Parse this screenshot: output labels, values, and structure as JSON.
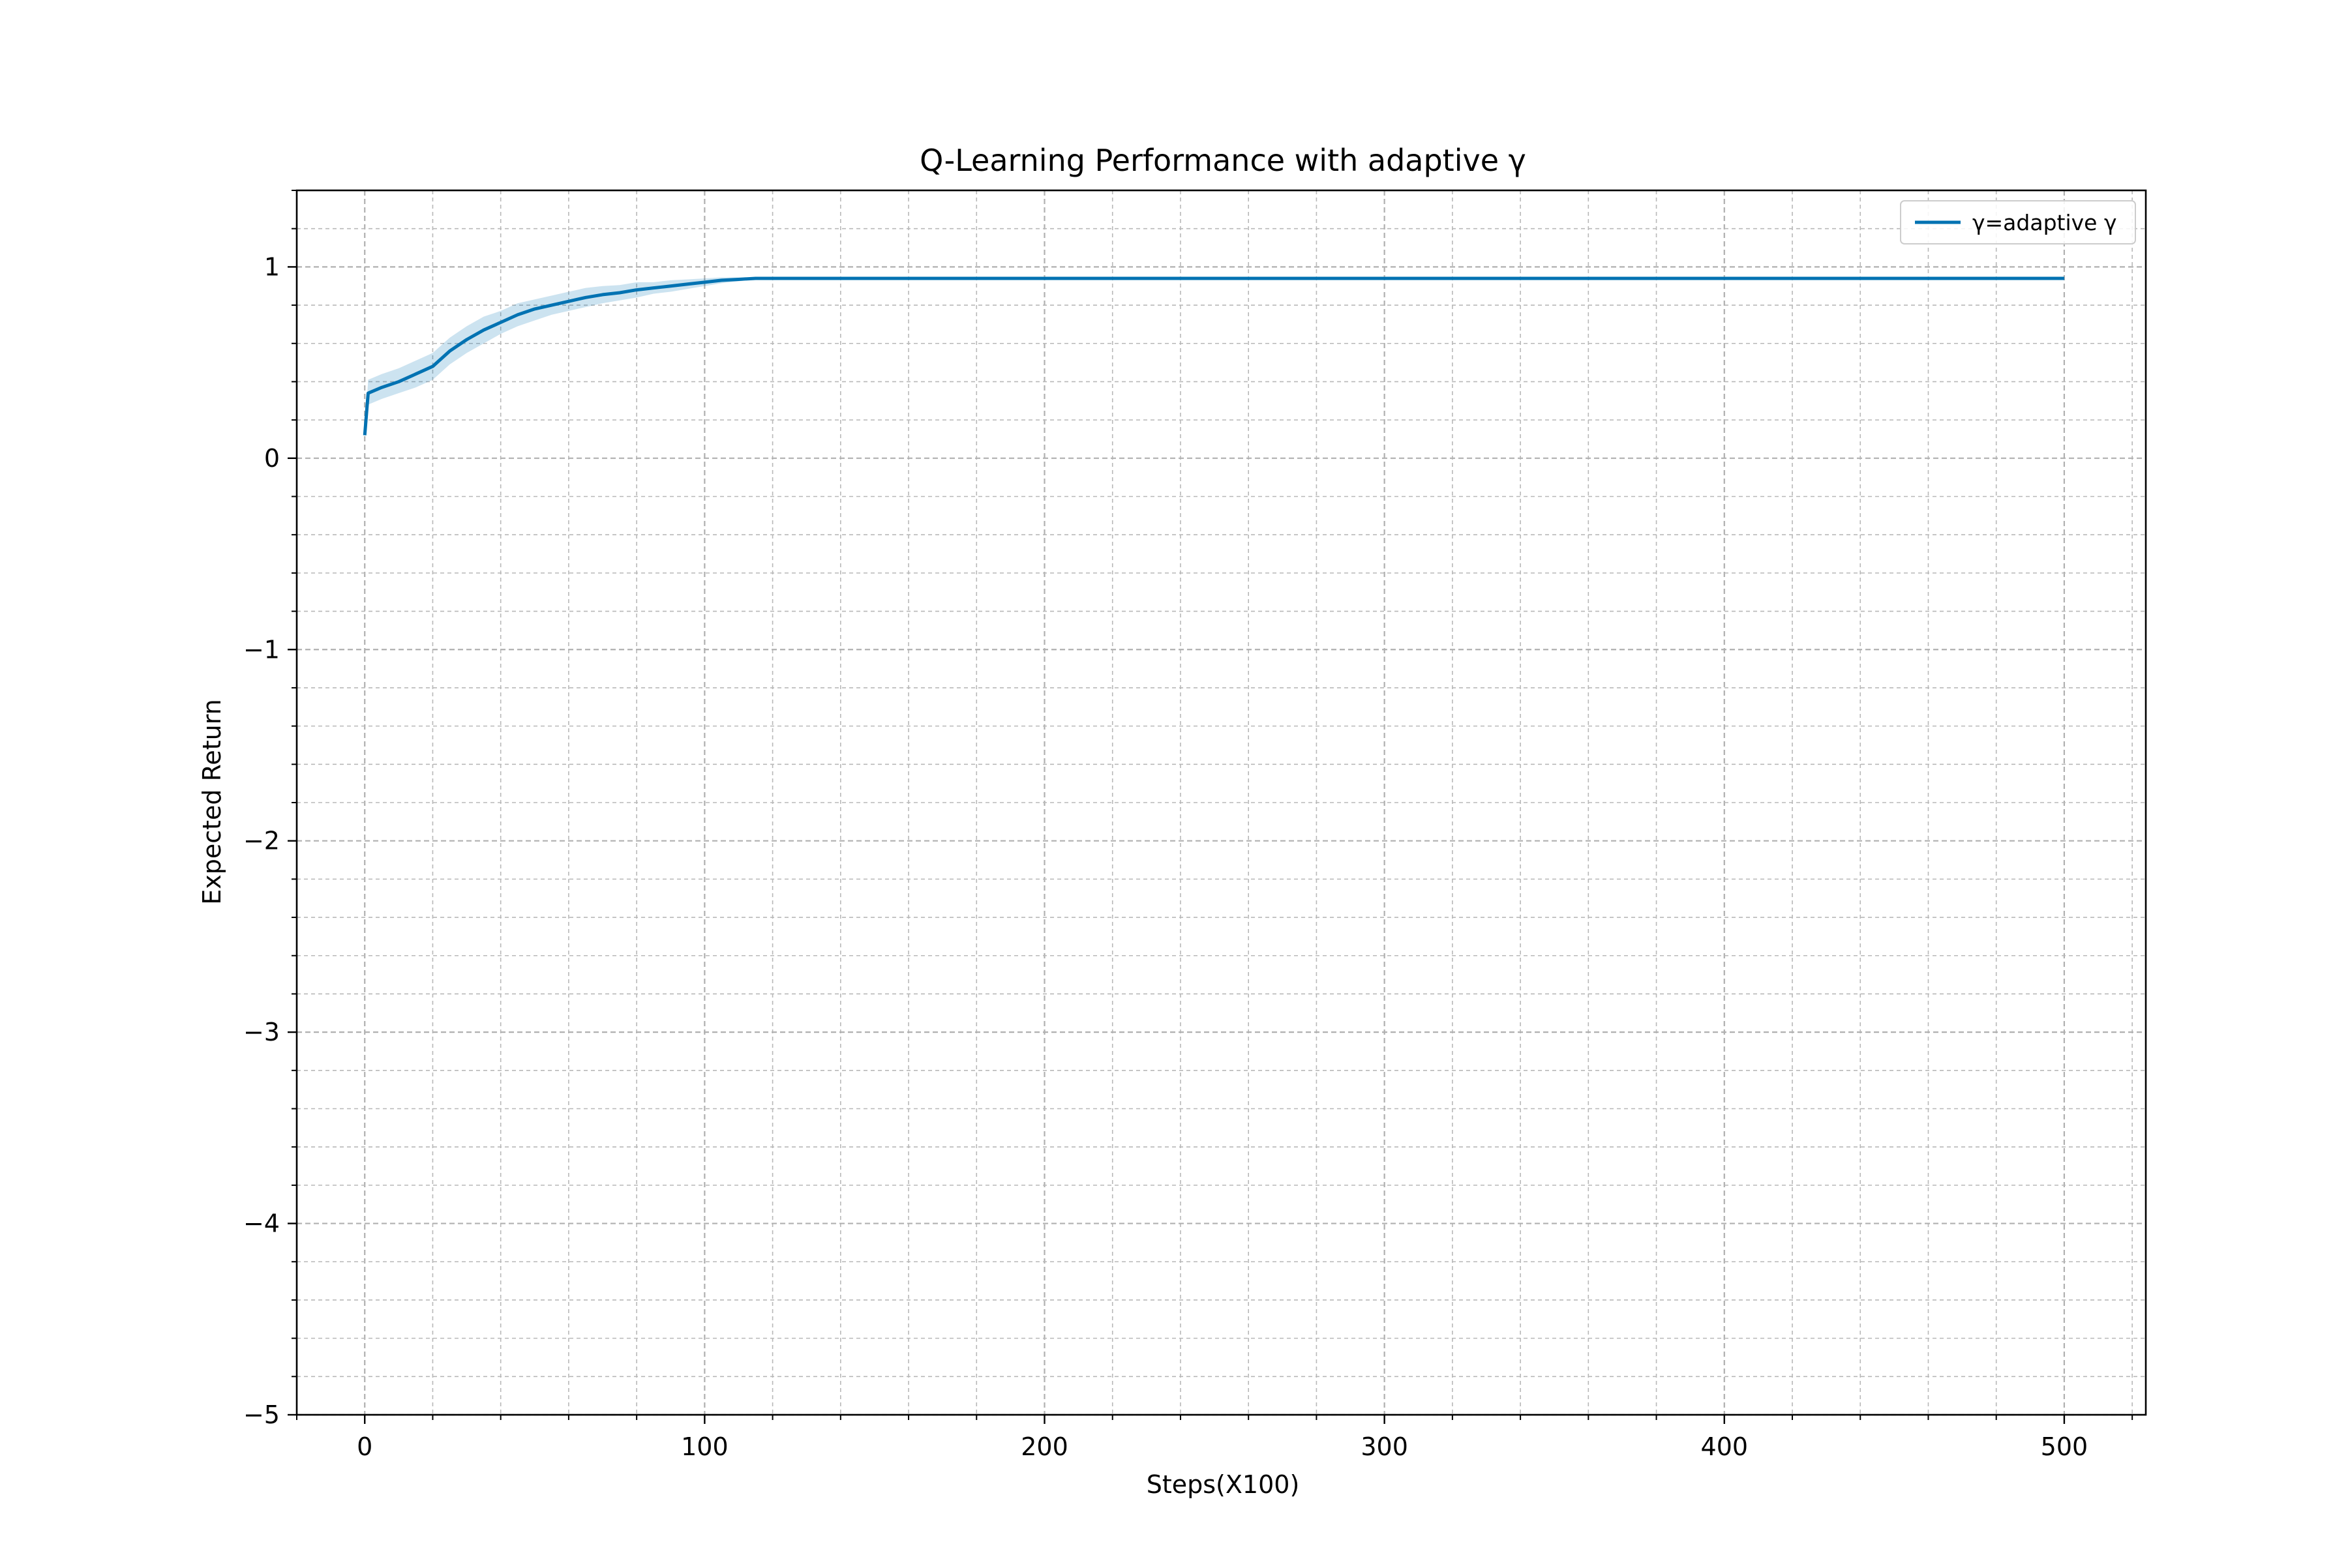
{
  "chart_data": {
    "type": "line",
    "title": "Q-Learning Performance with adaptive γ",
    "xlabel": "Steps(X100)",
    "ylabel": "Expected Return",
    "xlim": [
      -20,
      524
    ],
    "ylim": [
      -5,
      1.4
    ],
    "x_ticks": [
      0,
      100,
      200,
      300,
      400,
      500
    ],
    "x_tick_labels": [
      "0",
      "100",
      "200",
      "300",
      "400",
      "500"
    ],
    "y_ticks": [
      -5,
      -4,
      -3,
      -2,
      -1,
      0,
      1
    ],
    "y_tick_labels": [
      "−5",
      "−4",
      "−3",
      "−2",
      "−1",
      "0",
      "1"
    ],
    "x_minor_step": 20,
    "y_minor_step": 0.2,
    "grid": true,
    "legend": {
      "position": "upper right",
      "entries": [
        "γ=adaptive γ"
      ]
    },
    "series": [
      {
        "name": "γ=adaptive γ",
        "color": "#0072b2",
        "band_color": "#0072b2",
        "x": [
          0,
          1,
          5,
          10,
          15,
          20,
          25,
          30,
          35,
          40,
          45,
          50,
          55,
          60,
          65,
          70,
          75,
          80,
          85,
          90,
          95,
          100,
          105,
          110,
          115,
          120,
          150,
          200,
          250,
          300,
          350,
          400,
          450,
          500
        ],
        "y": [
          0.12,
          0.34,
          0.37,
          0.4,
          0.44,
          0.48,
          0.56,
          0.62,
          0.67,
          0.71,
          0.75,
          0.78,
          0.8,
          0.82,
          0.84,
          0.855,
          0.865,
          0.88,
          0.89,
          0.9,
          0.91,
          0.92,
          0.93,
          0.935,
          0.94,
          0.94,
          0.94,
          0.94,
          0.94,
          0.94,
          0.94,
          0.94,
          0.94,
          0.94
        ],
        "lower": [
          0.12,
          0.28,
          0.31,
          0.34,
          0.37,
          0.41,
          0.49,
          0.55,
          0.6,
          0.65,
          0.69,
          0.72,
          0.75,
          0.77,
          0.79,
          0.81,
          0.825,
          0.84,
          0.86,
          0.87,
          0.885,
          0.9,
          0.915,
          0.925,
          0.935,
          0.94,
          0.94,
          0.94,
          0.94,
          0.94,
          0.94,
          0.94,
          0.94,
          0.94
        ],
        "upper": [
          0.12,
          0.41,
          0.44,
          0.47,
          0.51,
          0.55,
          0.63,
          0.69,
          0.74,
          0.77,
          0.81,
          0.83,
          0.85,
          0.87,
          0.89,
          0.9,
          0.905,
          0.92,
          0.92,
          0.93,
          0.935,
          0.94,
          0.945,
          0.945,
          0.945,
          0.94,
          0.94,
          0.94,
          0.94,
          0.94,
          0.94,
          0.94,
          0.94,
          0.94
        ]
      }
    ]
  }
}
